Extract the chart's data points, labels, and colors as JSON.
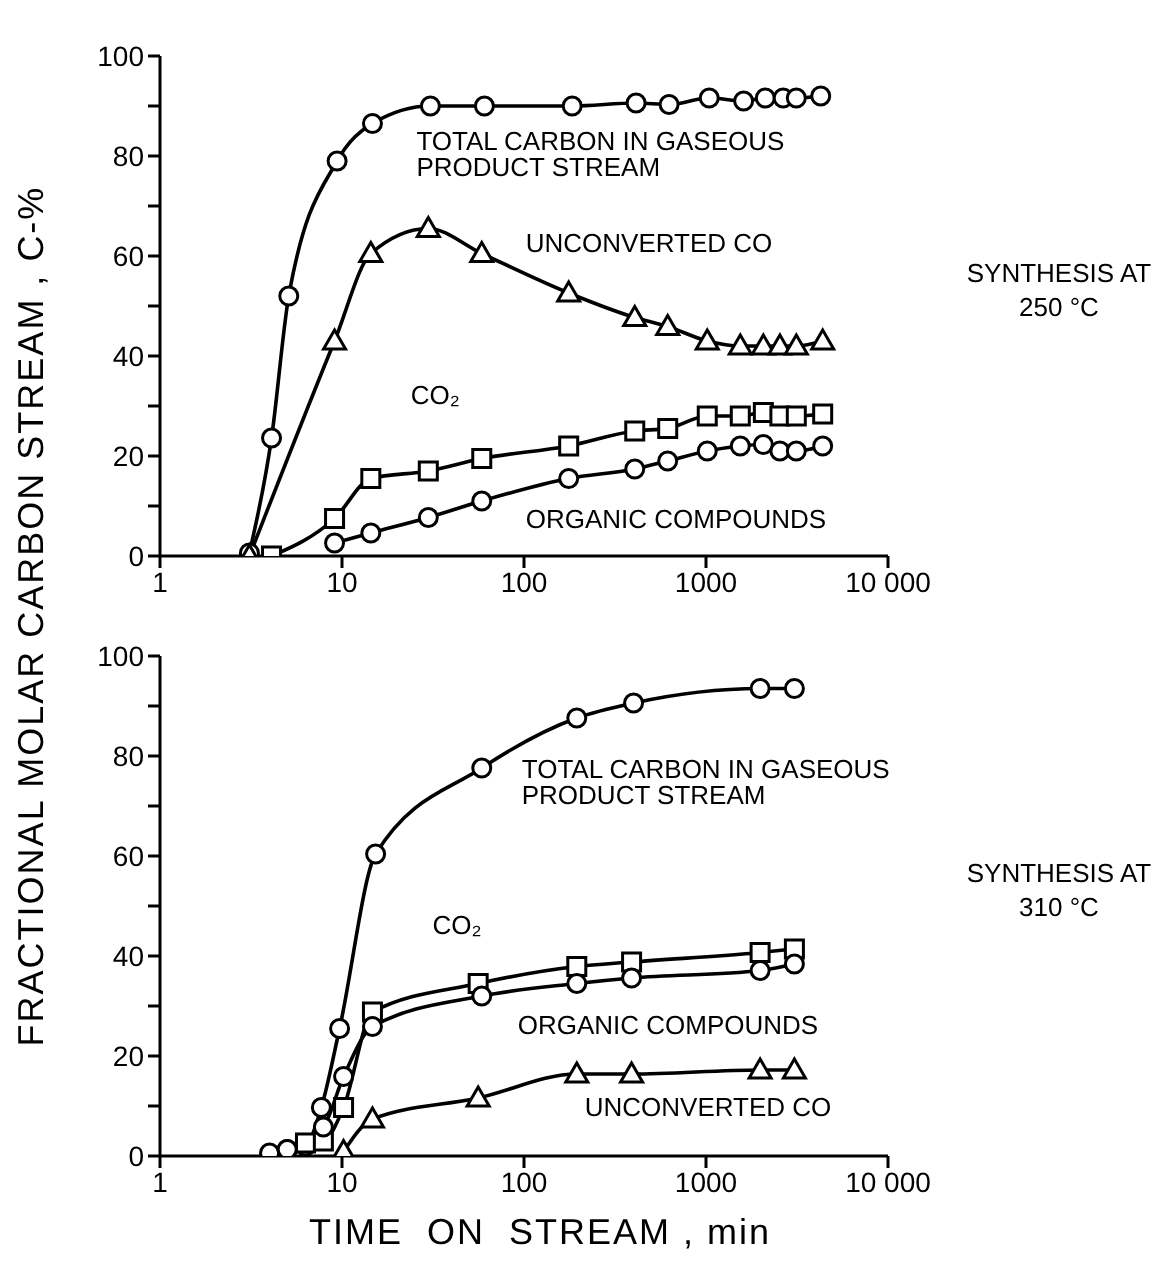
{
  "chart_data": [
    {
      "type": "line",
      "ylabel": "FRACTIONAL MOLAR CARBON STREAM , C-%",
      "annotations": [
        "SYNTHESIS AT 250 °C"
      ],
      "log": "x",
      "grid": false,
      "line_style": "solid",
      "xlim": [
        1,
        10000
      ],
      "xticks": [
        1,
        10,
        100,
        1000,
        {
          "value": 10000,
          "label": "10 000"
        }
      ],
      "ylim": [
        0,
        100
      ],
      "yticks": [
        0,
        {
          "value": 10,
          "label": null
        },
        20,
        {
          "value": 30,
          "label": null
        },
        40,
        {
          "value": 50,
          "label": null
        },
        60,
        {
          "value": 70,
          "label": null
        },
        80,
        {
          "value": 90,
          "label": null
        },
        100
      ],
      "series": [
        {
          "name": "TOTAL CARBON IN GASEOUS PRODUCT STREAM",
          "color": "#000000",
          "marker": "circle",
          "x": [
            3.1,
            4.1,
            5.1,
            9.4,
            14.7,
            30.6,
            60.6,
            184,
            413,
            627,
            1042,
            1610,
            2118,
            2654,
            3135,
            4270
          ],
          "values": [
            0.6,
            23.6,
            52,
            79,
            86.5,
            90,
            90,
            90,
            90.6,
            90.3,
            91.6,
            91,
            91.6,
            91.6,
            91.6,
            92
          ]
        },
        {
          "name": "UNCONVERTED CO",
          "color": "#000000",
          "marker": "triangle",
          "x": [
            3.1,
            9.1,
            14.4,
            29.8,
            58.6,
            176,
            406,
            616,
            1016,
            1543,
            2066,
            2547,
            3135,
            4376
          ],
          "values": [
            0,
            43,
            60.5,
            65.5,
            60.5,
            52.6,
            47.7,
            45.9,
            43,
            42,
            42,
            42,
            42,
            43
          ]
        },
        {
          "name": "CO₂",
          "color": "#000000",
          "marker": "square",
          "x": [
            4.1,
            9.1,
            14.4,
            29.8,
            58.6,
            176,
            406,
            616,
            1016,
            1543,
            2066,
            2547,
            3135,
            4376
          ],
          "values": [
            0,
            7.5,
            15.5,
            17,
            19.5,
            22,
            25,
            25.5,
            28,
            28,
            28.7,
            28,
            28,
            28.4
          ]
        },
        {
          "name": "ORGANIC COMPOUNDS",
          "color": "#000000",
          "marker": "circle",
          "x": [
            9.1,
            14.4,
            29.8,
            58.6,
            176,
            406,
            616,
            1016,
            1543,
            2066,
            2547,
            3135,
            4376
          ],
          "values": [
            2.6,
            4.6,
            7.7,
            11,
            15.5,
            17.4,
            19,
            21,
            22,
            22.3,
            21,
            21,
            22
          ]
        }
      ]
    },
    {
      "type": "line",
      "xlabel": "TIME  ON  STREAM , min",
      "annotations": [
        "SYNTHESIS AT 310 °C"
      ],
      "log": "x",
      "grid": false,
      "line_style": "solid",
      "xlim": [
        1,
        10000
      ],
      "xticks": [
        1,
        10,
        100,
        1000,
        {
          "value": 10000,
          "label": "10 000"
        }
      ],
      "ylim": [
        0,
        100
      ],
      "yticks": [
        0,
        {
          "value": 10,
          "label": null
        },
        20,
        {
          "value": 30,
          "label": null
        },
        40,
        {
          "value": 50,
          "label": null
        },
        60,
        {
          "value": 70,
          "label": null
        },
        80,
        {
          "value": 90,
          "label": null
        },
        100
      ],
      "series": [
        {
          "name": "TOTAL CARBON IN GASEOUS PRODUCT STREAM",
          "color": "#000000",
          "marker": "circle",
          "x": [
            4,
            5,
            6.3,
            7.7,
            9.7,
            15.3,
            58.6,
            195,
            400,
            1983,
            3060
          ],
          "values": [
            0.6,
            1.3,
            2,
            9.7,
            25.5,
            60.4,
            77.6,
            87.6,
            90.6,
            93.5,
            93.5
          ]
        },
        {
          "name": "CO₂",
          "color": "#000000",
          "marker": "square",
          "x": [
            6.3,
            7.9,
            10.2,
            14.7,
            56,
            195,
            390,
            1983,
            3060
          ],
          "values": [
            2.6,
            3,
            9.7,
            28.8,
            34.5,
            37.9,
            38.8,
            40.7,
            41.4
          ]
        },
        {
          "name": "ORGANIC COMPOUNDS",
          "color": "#000000",
          "marker": "circle",
          "x": [
            5,
            7.9,
            10.2,
            14.7,
            58.6,
            195,
            390,
            1983,
            3060
          ],
          "values": [
            1.3,
            5.8,
            15.9,
            25.9,
            32,
            34.5,
            35.6,
            37.1,
            38.4
          ]
        },
        {
          "name": "UNCONVERTED CO",
          "color": "#000000",
          "marker": "triangle",
          "x": [
            10.2,
            14.7,
            56,
            195,
            390,
            1983,
            3060
          ],
          "values": [
            0.9,
            7.4,
            11.6,
            16.4,
            16.4,
            17.2,
            17.2
          ]
        }
      ]
    }
  ]
}
